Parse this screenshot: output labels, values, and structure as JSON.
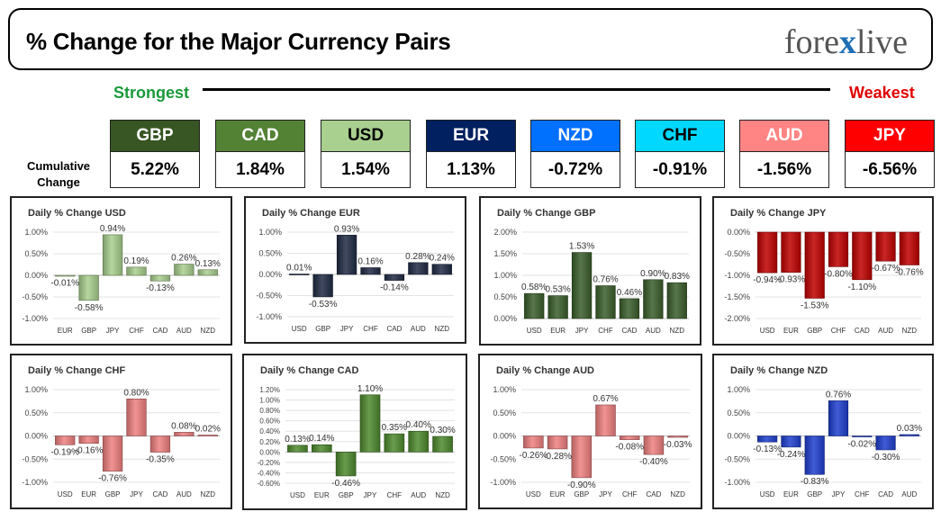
{
  "header": {
    "title": "% Change for the Major Currency Pairs",
    "logo": "forexlive"
  },
  "rank": {
    "strongest": "Strongest",
    "weakest": "Weakest"
  },
  "cumulative": {
    "label_line1": "Cumulative",
    "label_line2": "Change",
    "items": [
      {
        "name": "GBP",
        "value": "5.22%",
        "bg": "#375623",
        "fg": "#ffffff"
      },
      {
        "name": "CAD",
        "value": "1.84%",
        "bg": "#548235",
        "fg": "#ffffff"
      },
      {
        "name": "USD",
        "value": "1.54%",
        "bg": "#a9d08e",
        "fg": "#000000"
      },
      {
        "name": "EUR",
        "value": "1.13%",
        "bg": "#002060",
        "fg": "#ffffff"
      },
      {
        "name": "NZD",
        "value": "-0.72%",
        "bg": "#0070ff",
        "fg": "#ffffff"
      },
      {
        "name": "CHF",
        "value": "-0.91%",
        "bg": "#00d8ff",
        "fg": "#000000"
      },
      {
        "name": "AUD",
        "value": "-1.56%",
        "bg": "#ff8585",
        "fg": "#ffffff"
      },
      {
        "name": "JPY",
        "value": "-6.56%",
        "bg": "#ff0000",
        "fg": "#ffffff"
      }
    ]
  },
  "chart_data": [
    {
      "type": "bar",
      "title": "Daily % Change USD",
      "categories": [
        "EUR",
        "GBP",
        "JPY",
        "CHF",
        "CAD",
        "AUD",
        "NZD"
      ],
      "values": [
        -0.01,
        -0.58,
        0.94,
        0.19,
        -0.13,
        0.26,
        0.13
      ],
      "labels": [
        "-0.01%",
        "-0.58%",
        "0.94%",
        "0.19%",
        "-0.13%",
        "0.26%",
        "0.13%"
      ],
      "ylim": [
        -1,
        1
      ],
      "yticks": [
        1,
        0.5,
        0,
        -0.5,
        -1
      ],
      "ytick_labels": [
        "1.00%",
        "0.50%",
        "0.00%",
        "-0.50%",
        "-1.00%"
      ],
      "color": "#a9d08e"
    },
    {
      "type": "bar",
      "title": "Daily % Change EUR",
      "categories": [
        "USD",
        "GBP",
        "JPY",
        "CHF",
        "CAD",
        "AUD",
        "NZD"
      ],
      "values": [
        0.01,
        -0.53,
        0.93,
        0.16,
        -0.14,
        0.28,
        0.24
      ],
      "labels": [
        "0.01%",
        "-0.53%",
        "0.93%",
        "0.16%",
        "-0.14%",
        "0.28%",
        "0.24%"
      ],
      "ylim": [
        -1,
        1
      ],
      "yticks": [
        1,
        0.5,
        0,
        -0.5,
        -1
      ],
      "ytick_labels": [
        "1.00%",
        "0.50%",
        "0.00%",
        "-0.50%",
        "-1.00%"
      ],
      "color": "#1f2a44"
    },
    {
      "type": "bar",
      "title": "Daily % Change GBP",
      "categories": [
        "USD",
        "EUR",
        "JPY",
        "CHF",
        "CAD",
        "AUD",
        "NZD"
      ],
      "values": [
        0.58,
        0.53,
        1.53,
        0.76,
        0.46,
        0.9,
        0.83
      ],
      "labels": [
        "0.58%",
        "0.53%",
        "1.53%",
        "0.76%",
        "0.46%",
        "0.90%",
        "0.83%"
      ],
      "ylim": [
        0,
        2
      ],
      "yticks": [
        2,
        1.5,
        1,
        0.5,
        0
      ],
      "ytick_labels": [
        "2.00%",
        "1.50%",
        "1.00%",
        "0.50%",
        "0.00%"
      ],
      "color": "#3b5e2b"
    },
    {
      "type": "bar",
      "title": "Daily % Change JPY",
      "categories": [
        "USD",
        "EUR",
        "GBP",
        "CHF",
        "CAD",
        "AUD",
        "NZD"
      ],
      "values": [
        -0.94,
        -0.93,
        -1.53,
        -0.8,
        -1.1,
        -0.67,
        -0.76
      ],
      "labels": [
        "-0.94%",
        "-0.93%",
        "-1.53%",
        "-0.80%",
        "-1.10%",
        "-0.67%",
        "-0.76%"
      ],
      "ylim": [
        -2,
        0
      ],
      "yticks": [
        0,
        -0.5,
        -1,
        -1.5,
        -2
      ],
      "ytick_labels": [
        "0.00%",
        "-0.50%",
        "-1.00%",
        "-1.50%",
        "-2.00%"
      ],
      "color": "#c00000"
    },
    {
      "type": "bar",
      "title": "Daily % Change CHF",
      "categories": [
        "USD",
        "EUR",
        "GBP",
        "JPY",
        "CAD",
        "AUD",
        "NZD"
      ],
      "values": [
        -0.19,
        -0.16,
        -0.76,
        0.8,
        -0.35,
        0.08,
        0.02
      ],
      "labels": [
        "-0.19%",
        "-0.16%",
        "-0.76%",
        "0.80%",
        "-0.35%",
        "0.08%",
        "0.02%"
      ],
      "ylim": [
        -1,
        1
      ],
      "yticks": [
        1,
        0.5,
        0,
        -0.5,
        -1
      ],
      "ytick_labels": [
        "1.00%",
        "0.50%",
        "0.00%",
        "-0.50%",
        "-1.00%"
      ],
      "color": "#f08080"
    },
    {
      "type": "bar",
      "title": "Daily % Change CAD",
      "categories": [
        "USD",
        "EUR",
        "GBP",
        "JPY",
        "CHF",
        "AUD",
        "NZD"
      ],
      "values": [
        0.13,
        0.14,
        -0.46,
        1.1,
        0.35,
        0.4,
        0.3
      ],
      "labels": [
        "0.13%",
        "0.14%",
        "-0.46%",
        "1.10%",
        "0.35%",
        "0.40%",
        "0.30%"
      ],
      "ylim": [
        -0.6,
        1.2
      ],
      "yticks": [
        1.2,
        1.0,
        0.8,
        0.6,
        0.4,
        0.2,
        0,
        -0.2,
        -0.4,
        -0.6
      ],
      "ytick_labels": [
        "1.20%",
        "1.00%",
        "0.80%",
        "0.60%",
        "0.40%",
        "0.20%",
        "0.00%",
        "-0.20%",
        "-0.40%",
        "-0.60%"
      ],
      "color": "#4e8a2e"
    },
    {
      "type": "bar",
      "title": "Daily % Change AUD",
      "categories": [
        "USD",
        "EUR",
        "GBP",
        "JPY",
        "CHF",
        "CAD",
        "NZD"
      ],
      "values": [
        -0.26,
        -0.28,
        -0.9,
        0.67,
        -0.08,
        -0.4,
        -0.03
      ],
      "labels": [
        "-0.26%",
        "-0.28%",
        "-0.90%",
        "0.67%",
        "-0.08%",
        "-0.40%",
        "-0.03%"
      ],
      "ylim": [
        -1,
        1
      ],
      "yticks": [
        1,
        0.5,
        0,
        -0.5,
        -1
      ],
      "ytick_labels": [
        "1.00%",
        "0.50%",
        "0.00%",
        "-0.50%",
        "-1.00%"
      ],
      "color": "#f08080"
    },
    {
      "type": "bar",
      "title": "Daily % Change NZD",
      "categories": [
        "USD",
        "EUR",
        "GBP",
        "JPY",
        "CHF",
        "CAD",
        "AUD"
      ],
      "values": [
        -0.13,
        -0.24,
        -0.83,
        0.76,
        -0.02,
        -0.3,
        0.03
      ],
      "labels": [
        "-0.13%",
        "-0.24%",
        "-0.83%",
        "0.76%",
        "-0.02%",
        "-0.30%",
        "0.03%"
      ],
      "ylim": [
        -1,
        1
      ],
      "yticks": [
        1,
        0.5,
        0,
        -0.5,
        -1
      ],
      "ytick_labels": [
        "1.00%",
        "0.50%",
        "0.00%",
        "-0.50%",
        "-1.00%"
      ],
      "color": "#1f3fd0"
    }
  ]
}
